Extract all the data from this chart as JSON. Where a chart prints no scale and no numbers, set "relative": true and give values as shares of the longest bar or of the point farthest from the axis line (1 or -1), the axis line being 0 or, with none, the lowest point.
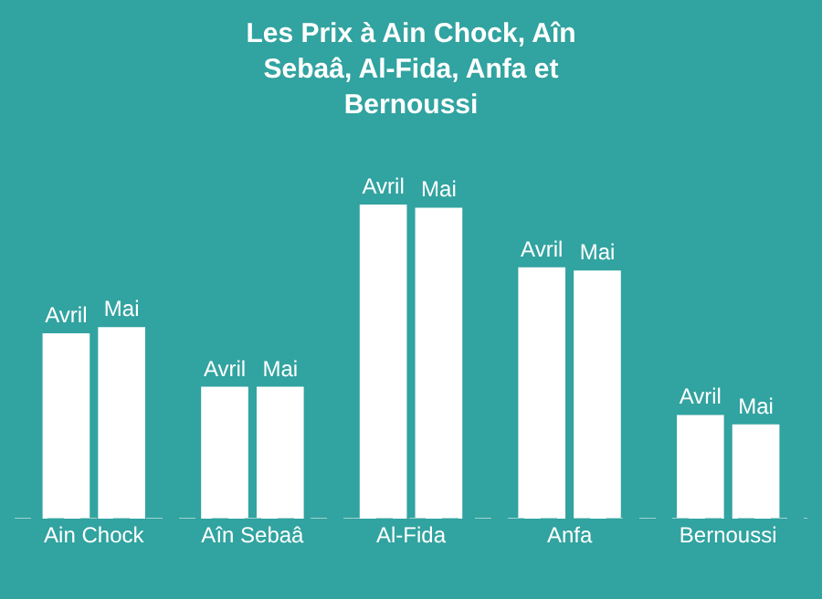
{
  "chart_data": {
    "type": "bar",
    "title": "Les Prix à Ain Chock, Aîn Sebaâ, Al-Fida, Anfa et Bernoussi",
    "relative": true,
    "legend": false,
    "grid": false,
    "categories": [
      "Ain Chock",
      "Aîn Sebaâ",
      "Al-Fida",
      "Anfa",
      "Bernoussi"
    ],
    "series": [
      {
        "name": "Avril",
        "color": "#ffffff",
        "values": [
          0.59,
          0.42,
          1,
          0.8,
          0.33
        ]
      },
      {
        "name": "Mai",
        "color": "#ffffff",
        "values": [
          0.61,
          0.42,
          0.99,
          0.79,
          0.3
        ]
      }
    ]
  }
}
